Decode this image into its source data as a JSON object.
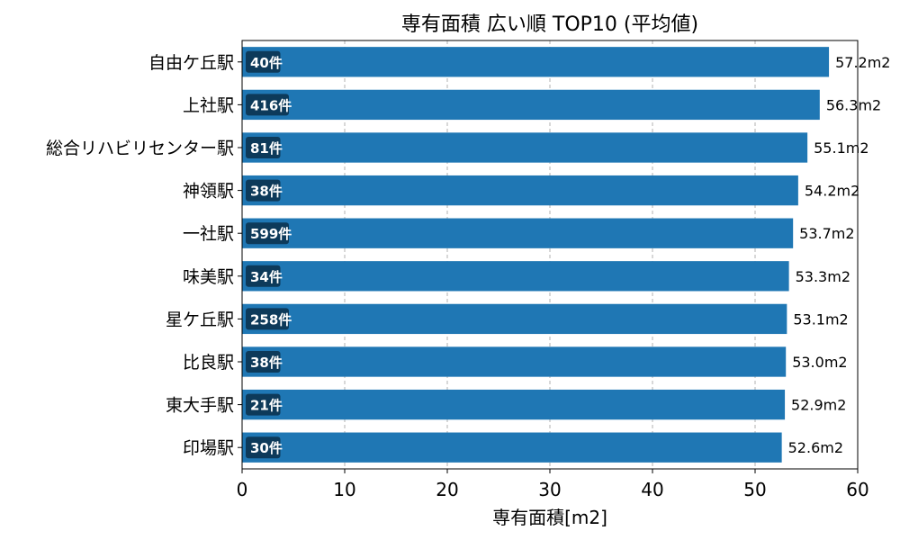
{
  "chart_data": {
    "type": "bar",
    "orientation": "horizontal",
    "title": "専有面積 広い順 TOP10 (平均値)",
    "xlabel": "専有面積[m2]",
    "ylabel": "",
    "xlim": [
      0,
      60
    ],
    "xticks": [
      0,
      10,
      20,
      30,
      40,
      50,
      60
    ],
    "grid": "x-dashed",
    "categories": [
      "自由ケ丘駅",
      "上社駅",
      "総合リハビリセンター駅",
      "神領駅",
      "一社駅",
      "味美駅",
      "星ケ丘駅",
      "比良駅",
      "東大手駅",
      "印場駅"
    ],
    "values": [
      57.2,
      56.3,
      55.1,
      54.2,
      53.7,
      53.3,
      53.1,
      53.0,
      52.9,
      52.6
    ],
    "value_labels": [
      "57.2m2",
      "56.3m2",
      "55.1m2",
      "54.2m2",
      "53.7m2",
      "53.3m2",
      "53.1m2",
      "53.0m2",
      "52.9m2",
      "52.6m2"
    ],
    "count_labels": [
      "40件",
      "416件",
      "81件",
      "38件",
      "599件",
      "34件",
      "258件",
      "38件",
      "21件",
      "30件"
    ],
    "colors": {
      "bar": "#1f77b4",
      "count_badge": "#0d3a5a",
      "grid": "#b0b0b0"
    }
  }
}
